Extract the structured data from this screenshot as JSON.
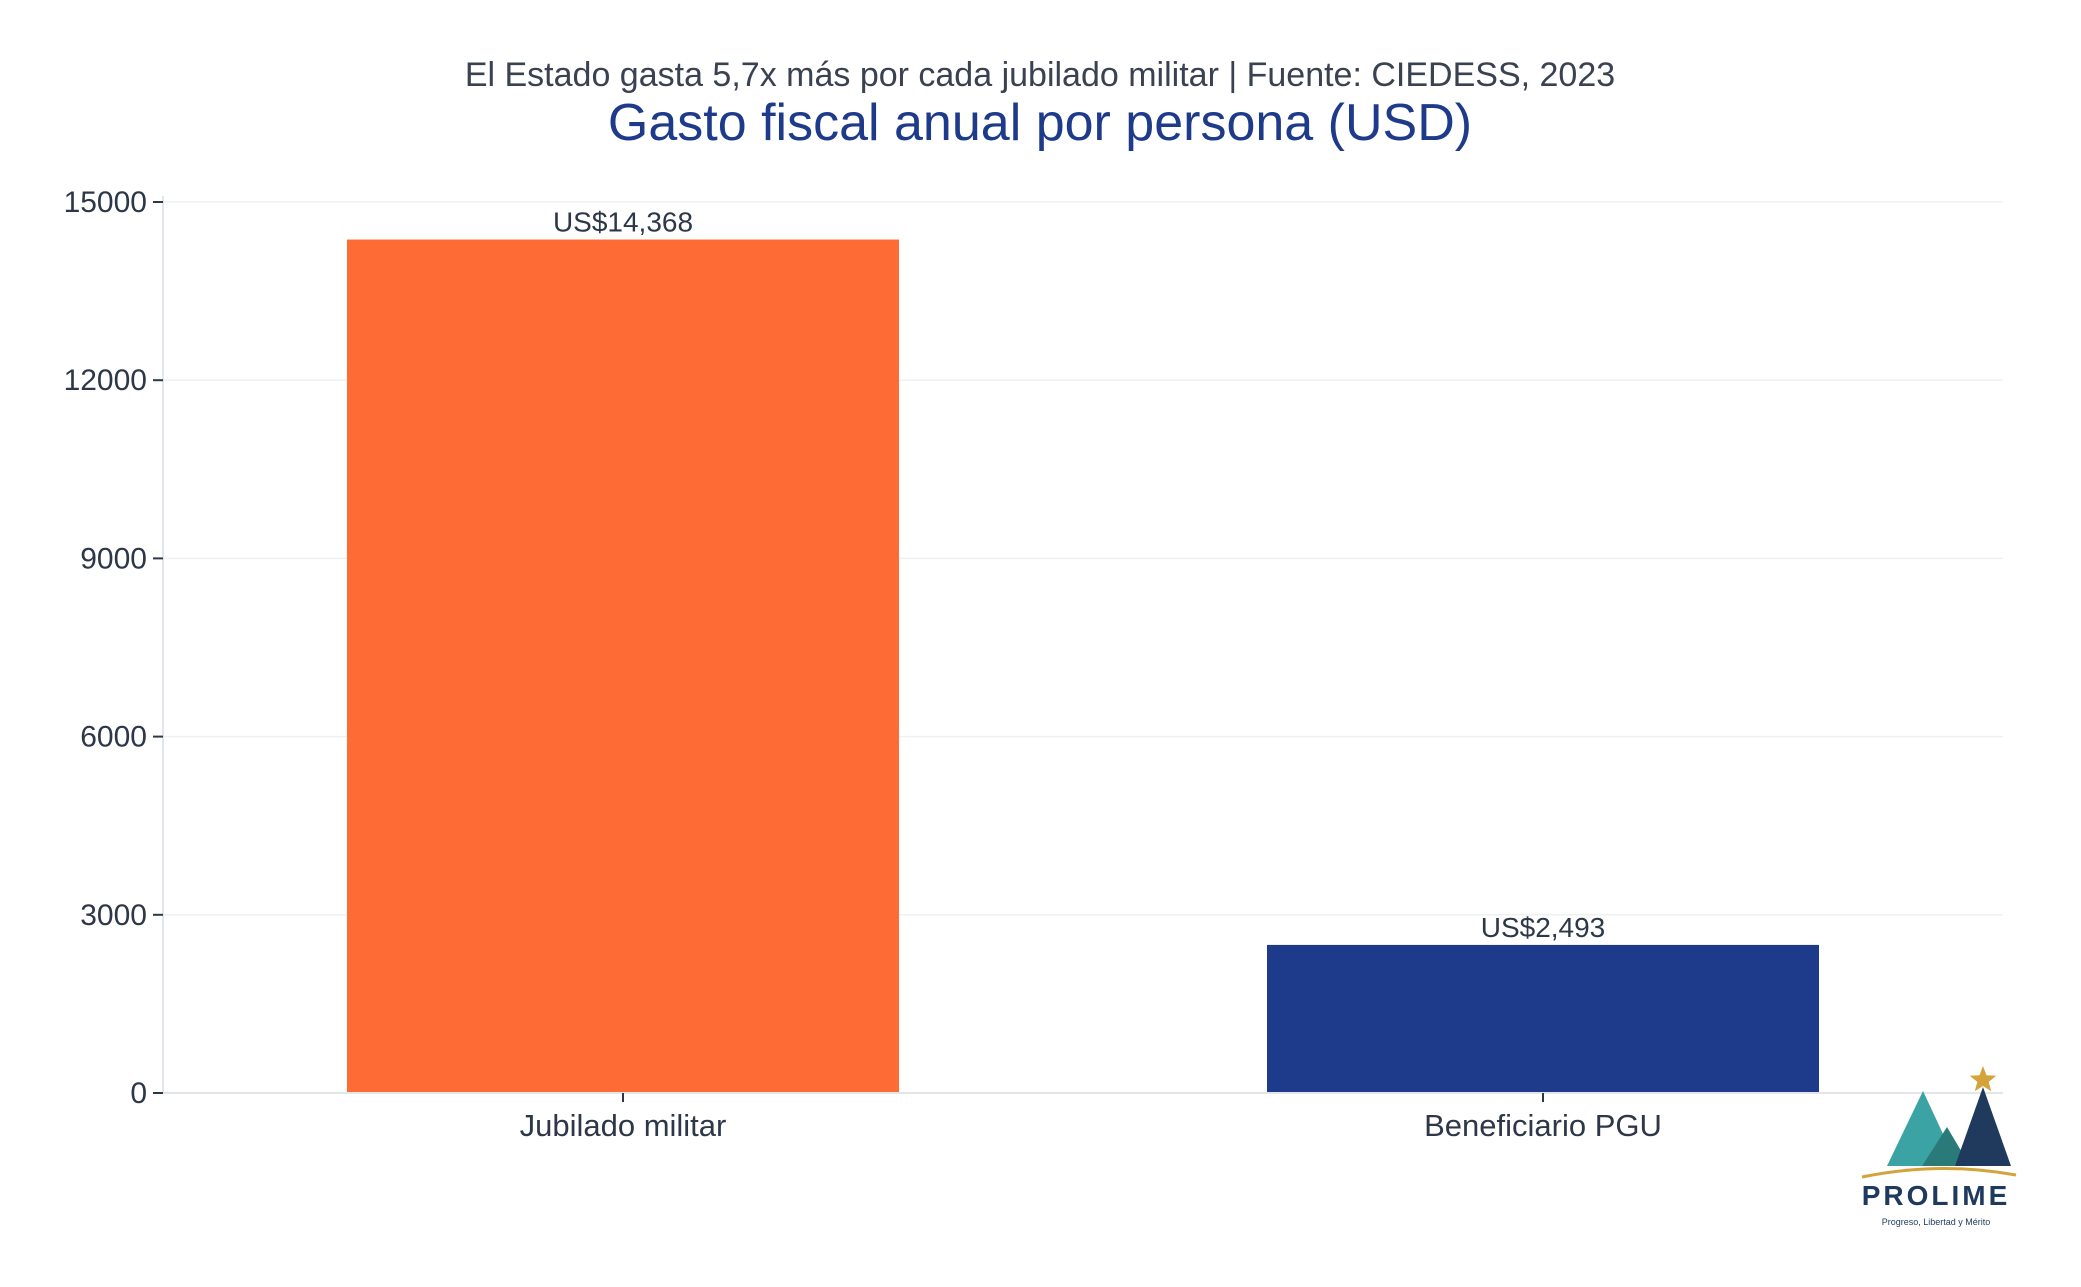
{
  "chart_data": {
    "type": "bar",
    "subtitle": "El Estado gasta 5,7x más por cada jubilado militar | Fuente: CIEDESS, 2023",
    "title": "Gasto fiscal anual por persona (USD)",
    "categories": [
      "Jubilado militar",
      "Beneficiario PGU"
    ],
    "values": [
      14368,
      2493
    ],
    "data_labels": [
      "US$14,368",
      "US$2,493"
    ],
    "colors": [
      "#ff6b35",
      "#1e3a8a"
    ],
    "ylim": [
      0,
      15000
    ],
    "yticks": [
      0,
      3000,
      6000,
      9000,
      12000,
      15000
    ],
    "grid": true,
    "xlabel": "",
    "ylabel": ""
  },
  "branding": {
    "logo_name": "PROLIME",
    "logo_tagline": "Progreso, Libertad y Mérito",
    "colors": {
      "teal": "#3ba3a3",
      "navy": "#1f3a5c",
      "gold": "#d4a33a"
    }
  }
}
